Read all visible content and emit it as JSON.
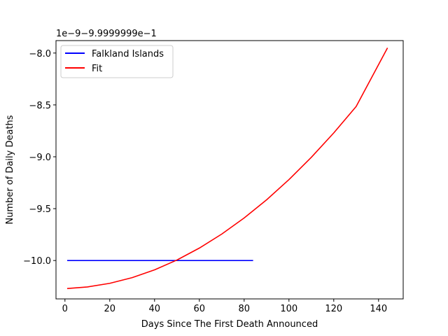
{
  "chart_data": {
    "type": "line",
    "xlabel": "Days Since The First Death Announced",
    "ylabel": "Number of Daily Deaths",
    "offset_text": "1e−9−9.9999999e−1",
    "xlim": [
      -4,
      151
    ],
    "ylim": [
      -10.37,
      -7.88
    ],
    "x_ticks": [
      0,
      20,
      40,
      60,
      80,
      100,
      120,
      140
    ],
    "x_tick_labels": [
      "0",
      "20",
      "40",
      "60",
      "80",
      "100",
      "120",
      "140"
    ],
    "y_ticks": [
      -10.0,
      -9.5,
      -9.0,
      -8.5,
      -8.0
    ],
    "y_tick_labels": [
      "−10.0",
      "−9.5",
      "−9.0",
      "−8.5",
      "−8.0"
    ],
    "grid": false,
    "legend_position": "top-left",
    "series": [
      {
        "name": "Falkland Islands",
        "color": "#0000ff",
        "x": [
          1,
          84
        ],
        "y": [
          -10.0,
          -10.0
        ]
      },
      {
        "name": "Fit",
        "color": "#ff0000",
        "x": [
          1,
          10,
          20,
          30,
          40,
          50,
          60,
          70,
          80,
          90,
          100,
          110,
          120,
          130,
          144
        ],
        "y": [
          -10.27,
          -10.255,
          -10.22,
          -10.165,
          -10.09,
          -9.995,
          -9.88,
          -9.745,
          -9.59,
          -9.415,
          -9.22,
          -9.005,
          -8.77,
          -8.515,
          -7.95
        ]
      }
    ]
  }
}
